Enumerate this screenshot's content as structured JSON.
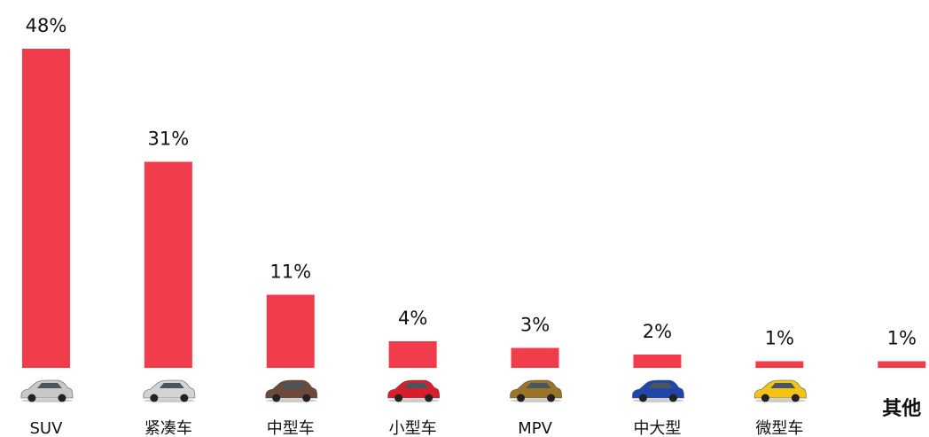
{
  "chart_data": {
    "type": "bar",
    "categories": [
      "SUV",
      "紧凑车",
      "中型车",
      "小型车",
      "MPV",
      "中大型",
      "微型车",
      "其他"
    ],
    "values": [
      48,
      31,
      11,
      4,
      3,
      2,
      1,
      1
    ],
    "value_labels": [
      "48%",
      "31%",
      "11%",
      "4%",
      "3%",
      "2%",
      "1%",
      "1%"
    ],
    "color": "#f03c4b",
    "ylim": [
      0,
      48
    ]
  }
}
